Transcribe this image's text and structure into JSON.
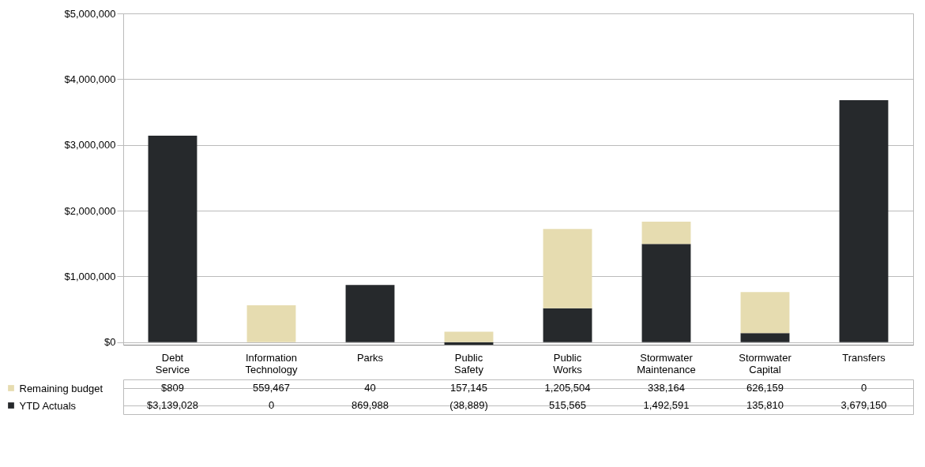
{
  "chart_data": {
    "type": "bar",
    "stacked": true,
    "grid": "y",
    "categories": [
      "Debt Service",
      "Information Technology",
      "Parks",
      "Public Safety",
      "Public Works",
      "Stormwater Maintenance",
      "Stormwater Capital",
      "Transfers"
    ],
    "series": [
      {
        "name": "YTD Actuals",
        "color": "#26292c",
        "values": [
          3139028,
          0,
          869988,
          -38889,
          515565,
          1492591,
          135810,
          3679150
        ],
        "value_labels": [
          "$3,139,028",
          "0",
          "869,988",
          "(38,889)",
          "515,565",
          "1,492,591",
          "135,810",
          "3,679,150"
        ]
      },
      {
        "name": "Remaining budget",
        "color": "#e6dcb0",
        "values": [
          809,
          559467,
          40,
          157145,
          1205504,
          338164,
          626159,
          0
        ],
        "value_labels": [
          "$809",
          "559,467",
          "40",
          "157,145",
          "1,205,504",
          "338,164",
          "626,159",
          "0"
        ]
      }
    ],
    "ylim": [
      -40000,
      5000000
    ],
    "legend": "bottom left",
    "yticks": [
      {
        "value": 0,
        "label": "$0"
      },
      {
        "value": 1000000,
        "label": "$1,000,000"
      },
      {
        "value": 2000000,
        "label": "$2,000,000"
      },
      {
        "value": 3000000,
        "label": "$3,000,000"
      },
      {
        "value": 4000000,
        "label": "$4,000,000"
      },
      {
        "value": 5000000,
        "label": "$5,000,000"
      }
    ]
  }
}
